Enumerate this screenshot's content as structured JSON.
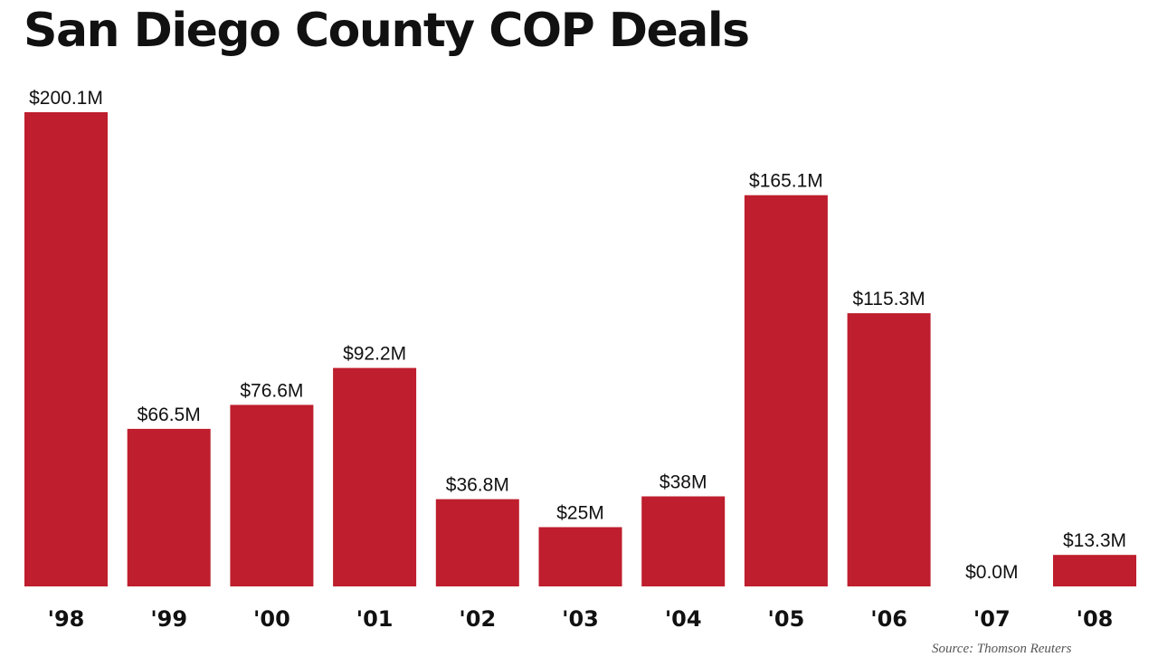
{
  "chart_data": {
    "type": "bar",
    "title": "San Diego County COP Deals",
    "xlabel": "",
    "ylabel": "",
    "categories": [
      "'98",
      "'99",
      "'00",
      "'01",
      "'02",
      "'03",
      "'04",
      "'05",
      "'06",
      "'07",
      "'08"
    ],
    "values": [
      200.1,
      66.5,
      76.6,
      92.2,
      36.8,
      25,
      38,
      165.1,
      115.3,
      0.0,
      13.3
    ],
    "value_labels": [
      "$200.1M",
      "$66.5M",
      "$76.6M",
      "$92.2M",
      "$36.8M",
      "$25M",
      "$38M",
      "$165.1M",
      "$115.3M",
      "$0.0M",
      "$13.3M"
    ],
    "units": "$M",
    "ylim": [
      0,
      200.1
    ],
    "grid": false,
    "bar_color": "#be1e2d",
    "source": "Source: Thomson Reuters"
  }
}
